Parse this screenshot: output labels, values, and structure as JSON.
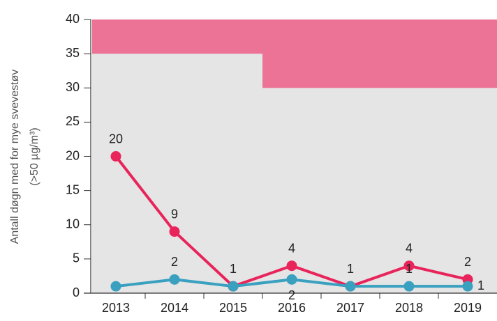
{
  "chart_data": {
    "type": "line",
    "y_label": [
      "Antall døgn med for mye svevestøv",
      "(>50 µg/m³)"
    ],
    "categories": [
      "2013",
      "2014",
      "2015",
      "2016",
      "2017",
      "2018",
      "2019"
    ],
    "series": [
      {
        "color": "#e8245a",
        "values": [
          20,
          9,
          1,
          4,
          1,
          4,
          2
        ],
        "value_labels": [
          "20",
          "9",
          "1",
          "4",
          "1",
          "4",
          "2"
        ]
      },
      {
        "color": "#3aa0c0",
        "values": [
          1,
          2,
          1,
          2,
          1,
          1,
          1
        ],
        "value_labels": [
          null,
          "2",
          null,
          "2",
          null,
          "1",
          "1"
        ]
      }
    ],
    "limit": {
      "color": "#ec7396",
      "values": [
        35,
        35,
        35,
        30,
        30,
        30,
        30
      ]
    },
    "ylim": [
      0,
      40
    ],
    "yticks": [
      0,
      5,
      10,
      15,
      20,
      25,
      30,
      35,
      40
    ]
  }
}
